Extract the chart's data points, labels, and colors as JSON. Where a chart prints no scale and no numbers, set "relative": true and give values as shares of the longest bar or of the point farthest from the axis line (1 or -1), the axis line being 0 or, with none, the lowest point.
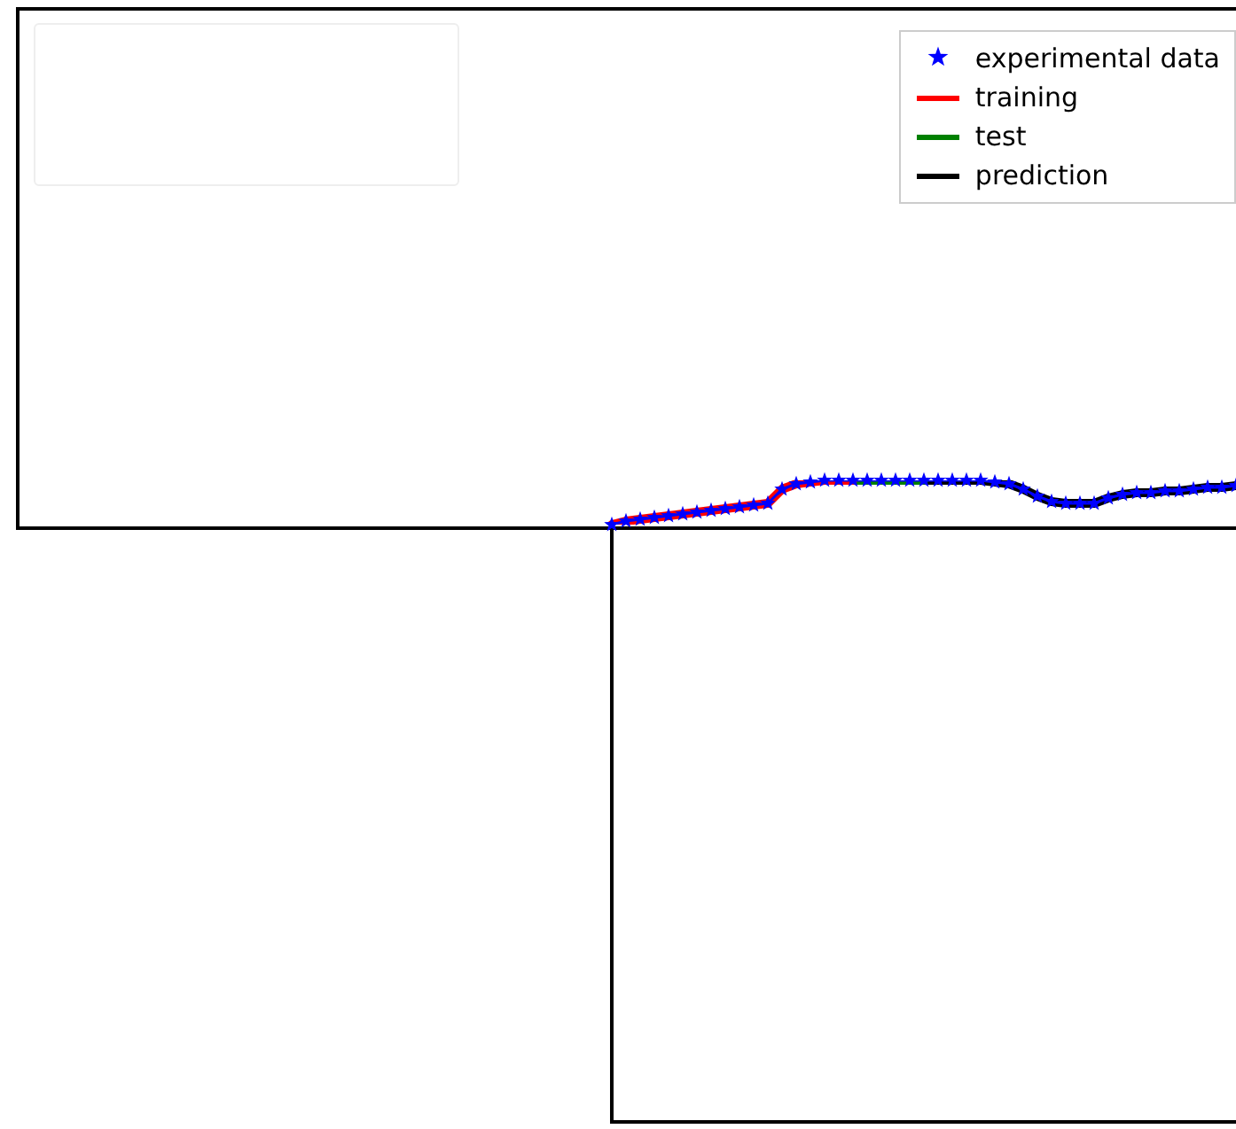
{
  "chart_data": {
    "type": "line",
    "relative": true,
    "legend": "top right",
    "categories": [
      null,
      null,
      null,
      null,
      null,
      null,
      null,
      null,
      null,
      null,
      null,
      null,
      null,
      null,
      null,
      null,
      null,
      null,
      null,
      null,
      null,
      null,
      null,
      null,
      null,
      null,
      null,
      null,
      null,
      null,
      null,
      null,
      null,
      null,
      null,
      null,
      null,
      null,
      null,
      null,
      null,
      null,
      null,
      null,
      null
    ],
    "series": [
      {
        "name": "experimental data",
        "marker": "star",
        "color": "#0000ff",
        "values": [
          0,
          0.08,
          0.12,
          0.16,
          0.2,
          0.24,
          0.28,
          0.32,
          0.36,
          0.4,
          0.44,
          0.48,
          0.8,
          0.92,
          0.96,
          1,
          1,
          1,
          1,
          1,
          1,
          1,
          1,
          1,
          1,
          1,
          1,
          0.96,
          0.92,
          0.8,
          0.64,
          0.52,
          0.48,
          0.48,
          0.48,
          0.6,
          0.68,
          0.72,
          0.72,
          0.76,
          0.76,
          0.8,
          0.84,
          0.84,
          0.88
        ]
      },
      {
        "name": "training",
        "color": "#ff0000",
        "values": [
          0,
          0.08,
          0.12,
          0.16,
          0.2,
          0.24,
          0.28,
          0.32,
          0.36,
          0.4,
          0.44,
          0.48,
          0.8,
          0.92,
          0.96,
          1,
          1,
          1,
          null,
          null,
          null,
          null,
          null,
          null,
          null,
          null,
          null,
          null,
          null,
          null,
          null,
          null,
          null,
          null,
          null,
          null,
          null,
          null,
          null,
          null,
          null,
          null,
          null,
          null,
          null
        ]
      },
      {
        "name": "test",
        "color": "#008000",
        "values": [
          null,
          null,
          null,
          null,
          null,
          null,
          null,
          null,
          null,
          null,
          null,
          null,
          null,
          null,
          null,
          null,
          null,
          1,
          1,
          1,
          1,
          1,
          1,
          null,
          null,
          null,
          null,
          null,
          null,
          null,
          null,
          null,
          null,
          null,
          null,
          null,
          null,
          null,
          null,
          null,
          null,
          null,
          null,
          null,
          null
        ]
      },
      {
        "name": "prediction",
        "color": "#000000",
        "values": [
          null,
          null,
          null,
          null,
          null,
          null,
          null,
          null,
          null,
          null,
          null,
          null,
          null,
          null,
          null,
          null,
          null,
          null,
          null,
          null,
          null,
          null,
          1,
          1,
          1,
          1,
          1,
          0.96,
          0.92,
          0.8,
          0.64,
          0.52,
          0.48,
          0.48,
          0.48,
          0.6,
          0.68,
          0.72,
          0.72,
          0.76,
          0.76,
          0.8,
          0.84,
          0.84,
          0.88
        ]
      }
    ]
  }
}
